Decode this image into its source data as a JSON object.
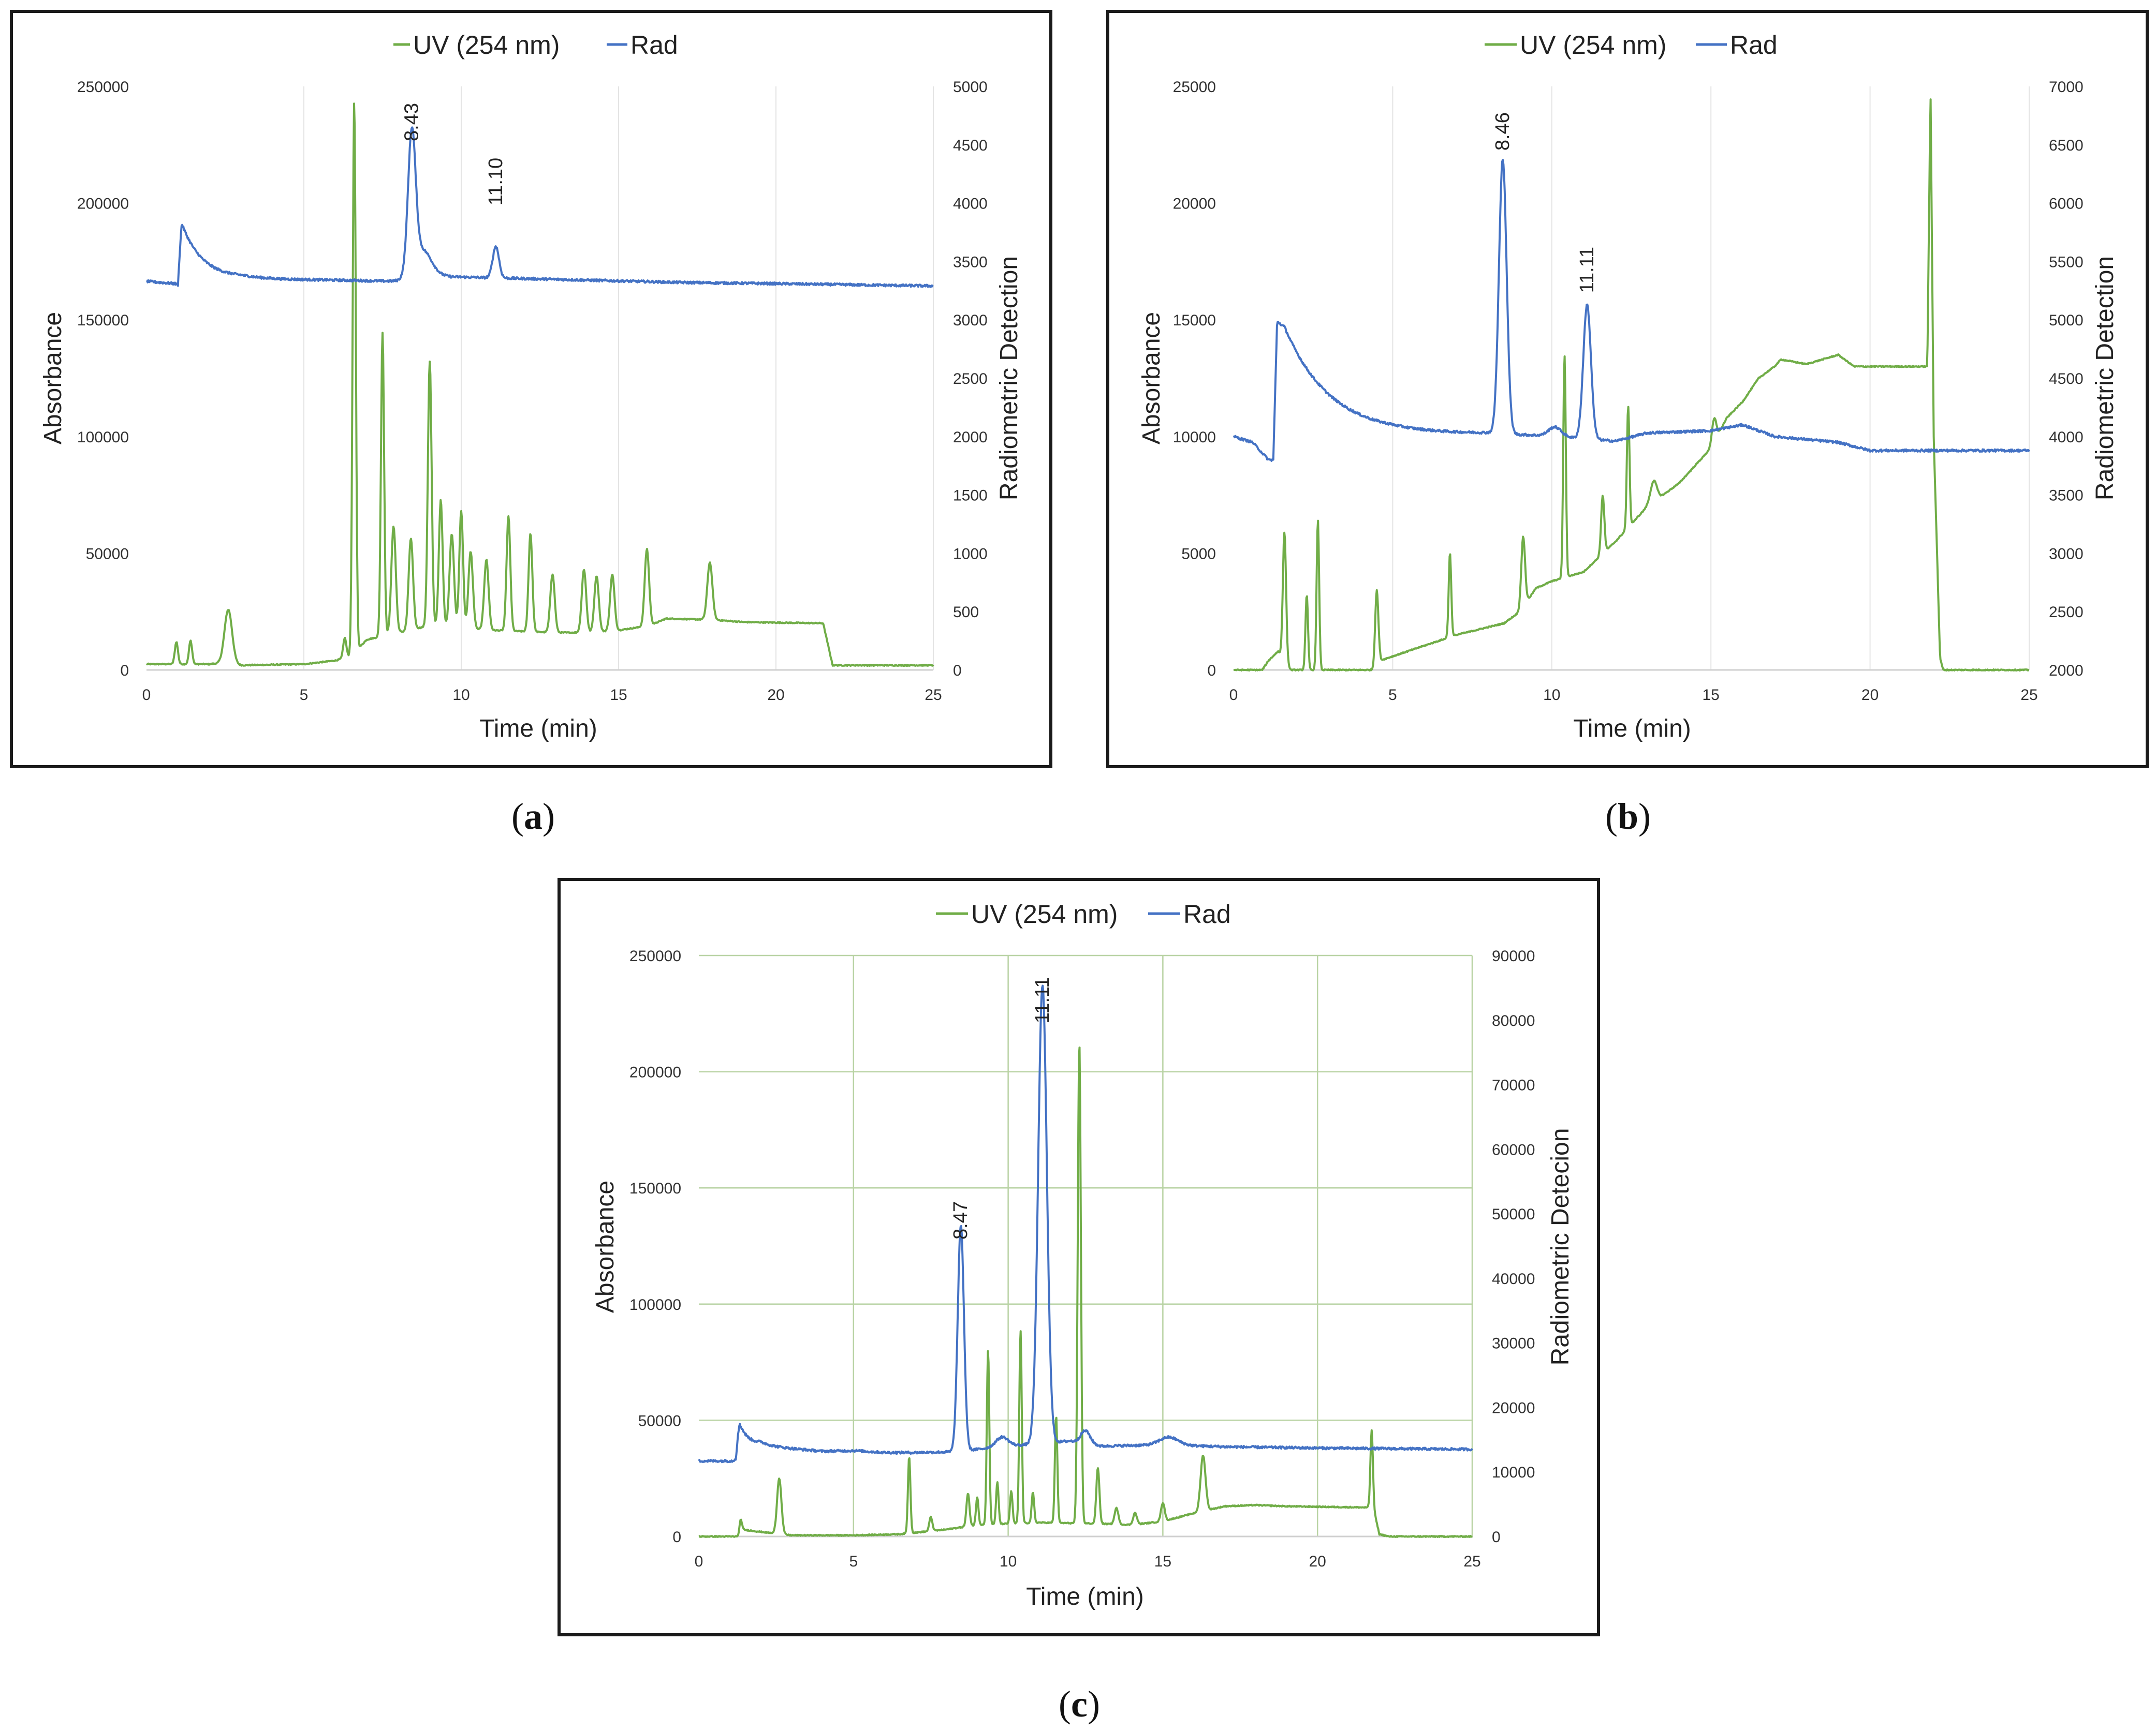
{
  "chart_data": [
    {
      "panel": "a",
      "type": "line",
      "caption": "(a)",
      "caption_letter": "a",
      "xlabel": "Time (min)",
      "ylabel_left": "Absorbance",
      "ylabel_right": "Radiometric Detection",
      "xlim": [
        0,
        25
      ],
      "ylim_left": [
        0,
        250000
      ],
      "ylim_right": [
        0,
        5000
      ],
      "x_ticks": [
        "0",
        "5",
        "10",
        "15",
        "20",
        "25"
      ],
      "y_ticks_left": [
        "0",
        "50000",
        "100000",
        "150000",
        "200000",
        "250000"
      ],
      "y_ticks_right": [
        "0",
        "500",
        "1000",
        "1500",
        "2000",
        "2500",
        "3000",
        "3500",
        "4000",
        "4500",
        "5000"
      ],
      "legend": [
        "UV (254 nm)",
        "Rad"
      ],
      "grid": "vertical",
      "annotations": [
        {
          "text": "8.43",
          "x": 8.43,
          "y": 4530,
          "axis": "right"
        },
        {
          "text": "11.10",
          "x": 11.1,
          "y": 3980,
          "axis": "right"
        }
      ],
      "series": [
        {
          "name": "UV (254 nm)",
          "axis": "left",
          "color": "#70ad47",
          "baseline": [
            [
              0,
              2500
            ],
            [
              2,
              2500
            ],
            [
              2.5,
              3000
            ],
            [
              3,
              2000
            ],
            [
              5,
              2500
            ],
            [
              6,
              4000
            ],
            [
              6.5,
              6000
            ],
            [
              7,
              13000
            ],
            [
              8,
              16000
            ],
            [
              9,
              19000
            ],
            [
              10,
              18000
            ],
            [
              11,
              17000
            ],
            [
              12,
              16500
            ],
            [
              13,
              16000
            ],
            [
              14,
              16000
            ],
            [
              15,
              17000
            ],
            [
              16,
              19000
            ],
            [
              16.5,
              22000
            ],
            [
              18,
              21500
            ],
            [
              19,
              20500
            ],
            [
              21.5,
              20000
            ],
            [
              21.8,
              2000
            ],
            [
              25,
              2000
            ]
          ],
          "peaks": [
            [
              0.95,
              9500,
              0.05
            ],
            [
              1.4,
              10000,
              0.05
            ],
            [
              2.6,
              23000,
              0.12
            ],
            [
              6.3,
              8500,
              0.05
            ],
            [
              6.6,
              236000,
              0.05
            ],
            [
              7.5,
              130000,
              0.05
            ],
            [
              7.85,
              46000,
              0.07
            ],
            [
              8.4,
              39000,
              0.07
            ],
            [
              9.0,
              113000,
              0.06
            ],
            [
              9.35,
              54000,
              0.06
            ],
            [
              9.7,
              40000,
              0.07
            ],
            [
              10.0,
              50000,
              0.06
            ],
            [
              10.3,
              33000,
              0.07
            ],
            [
              10.8,
              30000,
              0.07
            ],
            [
              11.5,
              49000,
              0.06
            ],
            [
              12.2,
              42000,
              0.06
            ],
            [
              12.9,
              25000,
              0.07
            ],
            [
              13.9,
              27000,
              0.07
            ],
            [
              14.3,
              24000,
              0.07
            ],
            [
              14.8,
              24000,
              0.07
            ],
            [
              15.9,
              33000,
              0.07
            ],
            [
              17.9,
              24500,
              0.08
            ]
          ]
        },
        {
          "name": "Rad",
          "axis": "right",
          "color": "#4472c4",
          "tail_start": 1.0,
          "tail_amp": 620,
          "tail_tau": 0.7,
          "baseline": [
            [
              0,
              3330
            ],
            [
              0.9,
              3310
            ],
            [
              1.0,
              3300
            ],
            [
              3,
              3350
            ],
            [
              6,
              3340
            ],
            [
              8,
              3330
            ],
            [
              9.5,
              3370
            ],
            [
              11,
              3360
            ],
            [
              14,
              3340
            ],
            [
              17,
              3320
            ],
            [
              20,
              3310
            ],
            [
              25,
              3290
            ]
          ],
          "peaks": [
            [
              8.43,
              1170,
              0.12
            ],
            [
              8.75,
              250,
              0.3
            ],
            [
              11.1,
              270,
              0.1
            ]
          ]
        }
      ]
    },
    {
      "panel": "b",
      "type": "line",
      "caption": "(b)",
      "caption_letter": "b",
      "xlabel": "Time (min)",
      "ylabel_left": "Absorbance",
      "ylabel_right": "Radiometric Detection",
      "xlim": [
        0,
        25
      ],
      "ylim_left": [
        0,
        25000
      ],
      "ylim_right": [
        2000,
        7000
      ],
      "x_ticks": [
        "0",
        "5",
        "10",
        "15",
        "20",
        "25"
      ],
      "y_ticks_left": [
        "0",
        "5000",
        "10000",
        "15000",
        "20000",
        "25000"
      ],
      "y_ticks_right": [
        "2000",
        "2500",
        "3000",
        "3500",
        "4000",
        "4500",
        "5000",
        "5500",
        "6000",
        "6500",
        "7000"
      ],
      "legend": [
        "UV (254 nm)",
        "Rad"
      ],
      "grid": "vertical",
      "annotations": [
        {
          "text": "8.46",
          "x": 8.46,
          "y": 6450,
          "axis": "right"
        },
        {
          "text": "11.11",
          "x": 11.11,
          "y": 5230,
          "axis": "right"
        }
      ],
      "series": [
        {
          "name": "UV (254 nm)",
          "axis": "left",
          "color": "#70ad47",
          "baseline": [
            [
              0,
              0
            ],
            [
              0.9,
              0
            ],
            [
              1.1,
              400
            ],
            [
              1.4,
              800
            ],
            [
              1.8,
              0
            ],
            [
              4.5,
              0
            ],
            [
              4.6,
              400
            ],
            [
              7,
              1500
            ],
            [
              8.5,
              2000
            ],
            [
              9,
              2500
            ],
            [
              9.5,
              3500
            ],
            [
              10,
              3800
            ],
            [
              11,
              4200
            ],
            [
              12,
              5500
            ],
            [
              13,
              7000
            ],
            [
              14,
              8000
            ],
            [
              15,
              9500
            ],
            [
              15.5,
              10800
            ],
            [
              16,
              11500
            ],
            [
              16.5,
              12500
            ],
            [
              17,
              13000
            ],
            [
              17.2,
              13300
            ],
            [
              18,
              13100
            ],
            [
              19,
              13500
            ],
            [
              19.5,
              13000
            ],
            [
              21.8,
              13000
            ],
            [
              21.9,
              25000
            ],
            [
              22.0,
              10000
            ],
            [
              22.2,
              500
            ],
            [
              22.3,
              0
            ],
            [
              25,
              0
            ]
          ],
          "peaks": [
            [
              1.6,
              5500,
              0.05
            ],
            [
              2.3,
              3200,
              0.04
            ],
            [
              2.65,
              6400,
              0.04
            ],
            [
              4.5,
              3400,
              0.05
            ],
            [
              6.8,
              3600,
              0.04
            ],
            [
              9.1,
              3000,
              0.06
            ],
            [
              10.4,
              9500,
              0.04
            ],
            [
              11.6,
              2500,
              0.05
            ],
            [
              12.4,
              5200,
              0.04
            ],
            [
              13.2,
              900,
              0.1
            ],
            [
              15.1,
              1000,
              0.07
            ]
          ]
        },
        {
          "name": "Rad",
          "axis": "right",
          "color": "#4472c4",
          "tail_start": 1.25,
          "tail_amp": 1250,
          "tail_tau": 1.5,
          "baseline": [
            [
              0,
              4000
            ],
            [
              0.6,
              3950
            ],
            [
              1.1,
              3800
            ],
            [
              1.3,
              3800
            ],
            [
              1.6,
              3950
            ],
            [
              5,
              4000
            ],
            [
              8,
              4020
            ],
            [
              10,
              4000
            ],
            [
              12,
              3960
            ],
            [
              13,
              4030
            ],
            [
              15,
              4050
            ],
            [
              16,
              4100
            ],
            [
              17,
              4000
            ],
            [
              19,
              3950
            ],
            [
              20,
              3880
            ],
            [
              25,
              3880
            ]
          ],
          "peaks": [
            [
              8.46,
              2350,
              0.12
            ],
            [
              10.1,
              80,
              0.2
            ],
            [
              11.11,
              1150,
              0.12
            ]
          ]
        }
      ]
    },
    {
      "panel": "c",
      "type": "line",
      "caption": "(c)",
      "caption_letter": "c",
      "xlabel": "Time (min)",
      "ylabel_left": "Absorbance",
      "ylabel_right": "Radiometric Detecion",
      "xlim": [
        0,
        25
      ],
      "ylim_left": [
        0,
        250000
      ],
      "ylim_right": [
        0,
        90000
      ],
      "x_ticks": [
        "0",
        "5",
        "10",
        "15",
        "20",
        "25"
      ],
      "y_ticks_left": [
        "0",
        "50000",
        "100000",
        "150000",
        "200000",
        "250000"
      ],
      "y_ticks_right": [
        "0",
        "10000",
        "20000",
        "30000",
        "40000",
        "50000",
        "60000",
        "70000",
        "80000",
        "90000"
      ],
      "legend": [
        "UV (254 nm)",
        "Rad"
      ],
      "grid": "both",
      "annotations": [
        {
          "text": "8.47",
          "x": 8.47,
          "y": 46000,
          "axis": "right"
        },
        {
          "text": "11.11",
          "x": 11.11,
          "y": 79500,
          "axis": "right"
        }
      ],
      "series": [
        {
          "name": "UV (254 nm)",
          "axis": "left",
          "color": "#70ad47",
          "baseline": [
            [
              0,
              0
            ],
            [
              1.3,
              0
            ],
            [
              1.4,
              3000
            ],
            [
              2,
              2000
            ],
            [
              3,
              500
            ],
            [
              5,
              500
            ],
            [
              6.5,
              1000
            ],
            [
              8,
              3000
            ],
            [
              9,
              5000
            ],
            [
              11,
              6000
            ],
            [
              13,
              5500
            ],
            [
              14,
              5000
            ],
            [
              15,
              6500
            ],
            [
              16,
              10000
            ],
            [
              17,
              13000
            ],
            [
              18,
              13500
            ],
            [
              19,
              13000
            ],
            [
              21.5,
              12500
            ],
            [
              21.8,
              12500
            ],
            [
              22,
              1000
            ],
            [
              22.3,
              0
            ],
            [
              25,
              0
            ]
          ],
          "peaks": [
            [
              1.35,
              5500,
              0.04
            ],
            [
              2.6,
              24000,
              0.07
            ],
            [
              6.8,
              33000,
              0.04
            ],
            [
              7.5,
              6000,
              0.05
            ],
            [
              8.7,
              14000,
              0.05
            ],
            [
              9.0,
              12000,
              0.04
            ],
            [
              9.35,
              75000,
              0.04
            ],
            [
              9.65,
              18000,
              0.04
            ],
            [
              10.1,
              14000,
              0.04
            ],
            [
              10.4,
              83000,
              0.04
            ],
            [
              10.8,
              13000,
              0.04
            ],
            [
              11.55,
              46000,
              0.04
            ],
            [
              12.3,
              207000,
              0.05
            ],
            [
              12.9,
              24000,
              0.05
            ],
            [
              13.5,
              7000,
              0.06
            ],
            [
              14.1,
              5000,
              0.06
            ],
            [
              15.0,
              8000,
              0.06
            ],
            [
              16.3,
              24000,
              0.08
            ],
            [
              21.75,
              33000,
              0.04
            ]
          ]
        },
        {
          "name": "Rad",
          "axis": "right",
          "color": "#4472c4",
          "tail_start": 1.2,
          "tail_amp": 7000,
          "tail_tau": 0.35,
          "baseline": [
            [
              0,
              11700
            ],
            [
              1.1,
              11700
            ],
            [
              1.3,
              12500
            ],
            [
              2,
              14000
            ],
            [
              4,
              13200
            ],
            [
              5,
              13300
            ],
            [
              6,
              13000
            ],
            [
              7,
              13000
            ],
            [
              8.2,
              13100
            ],
            [
              10,
              14000
            ],
            [
              12,
              14800
            ],
            [
              13,
              14000
            ],
            [
              15,
              14200
            ],
            [
              17,
              13900
            ],
            [
              20,
              13700
            ],
            [
              25,
              13500
            ]
          ],
          "peaks": [
            [
              8.47,
              35000,
              0.1
            ],
            [
              9.8,
              1500,
              0.2
            ],
            [
              11.11,
              71000,
              0.14
            ],
            [
              12.5,
              2000,
              0.15
            ],
            [
              15.2,
              1200,
              0.3
            ]
          ]
        }
      ]
    }
  ]
}
